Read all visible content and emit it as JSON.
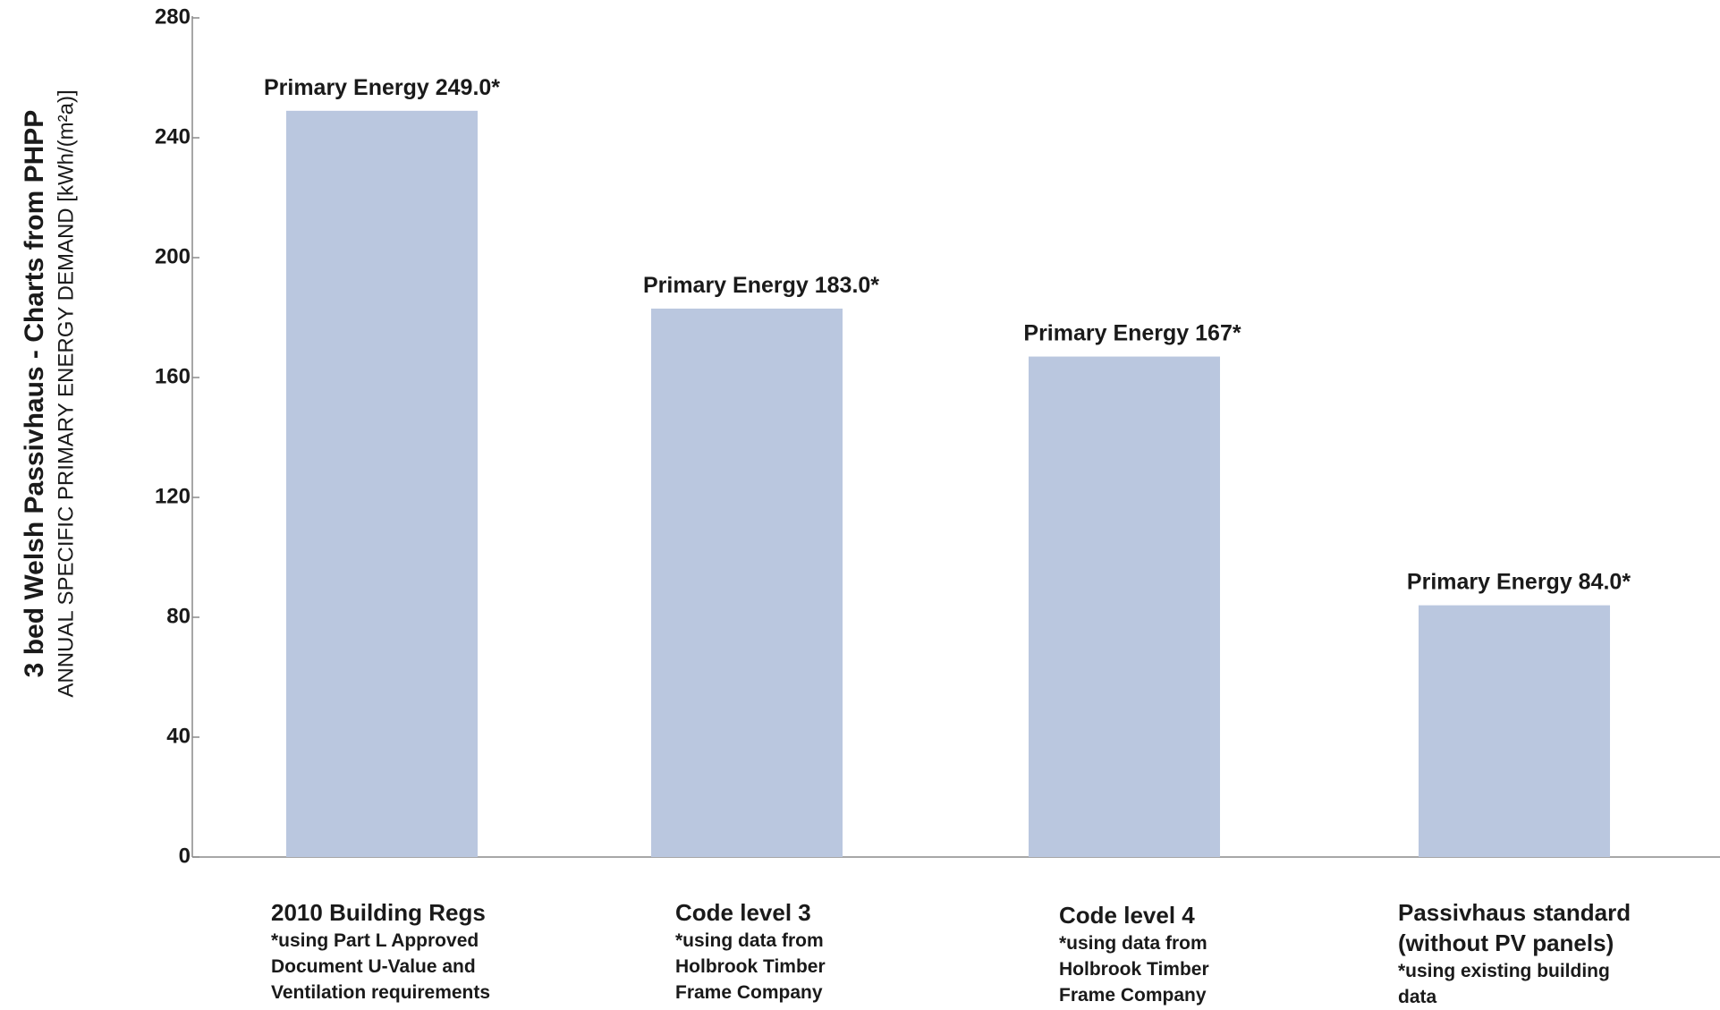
{
  "chart_data": {
    "type": "bar",
    "title": "3 bed Welsh Passivhaus  - Charts from PHPP",
    "ylabel": "ANNUAL SPECIFIC PRIMARY ENERGY  DEMAND  [kWh/(m²a)]",
    "ylim": [
      0,
      280
    ],
    "yticks": [
      0,
      40,
      80,
      120,
      160,
      200,
      240,
      280
    ],
    "grid": false,
    "legend": "none",
    "bar_color": "#bac7df",
    "categories": [
      {
        "title": "2010 Building Regs",
        "note": "*using Part L Approved\nDocument U-Value and\nVentilation requirements"
      },
      {
        "title": "Code level 3",
        "note": "*using data from\nHolbrook Timber\nFrame Company"
      },
      {
        "title": "Code level 4",
        "note": "*using data from\nHolbrook Timber\nFrame Company"
      },
      {
        "title": "Passivhaus standard\n(without PV panels)",
        "note": "*using existing building\ndata"
      }
    ],
    "values": [
      249.0,
      183.0,
      167,
      84.0
    ],
    "data_labels": [
      "Primary Energy 249.0*",
      "Primary Energy 183.0*",
      "Primary Energy 167*",
      "Primary Energy 84.0*"
    ]
  }
}
